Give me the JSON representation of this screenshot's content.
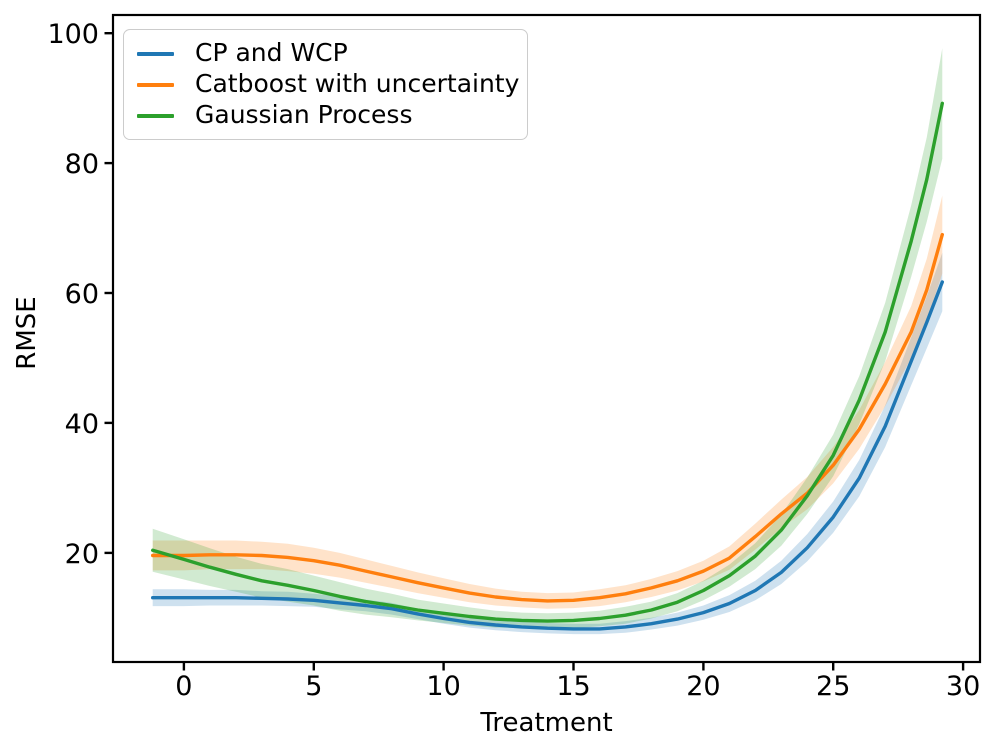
{
  "figure": {
    "background": "#ffffff",
    "axis_color": "#000000",
    "text_color": "#000000"
  },
  "legend": {
    "position": "upper left",
    "items": [
      {
        "label": "CP and WCP",
        "color": "#1f77b4"
      },
      {
        "label": "Catboost with uncertainty",
        "color": "#ff7f0e"
      },
      {
        "label": "Gaussian Process",
        "color": "#2ca02c"
      }
    ]
  },
  "chart_data": {
    "type": "line",
    "title": "",
    "xlabel": "Treatment",
    "ylabel": "RMSE",
    "xlim": [
      -2.73,
      30.65
    ],
    "ylim": [
      3.2,
      102.8
    ],
    "xticks": [
      0,
      5,
      10,
      15,
      20,
      25,
      30
    ],
    "yticks": [
      20,
      40,
      60,
      80,
      100
    ],
    "grid": false,
    "legend_position": "upper left",
    "band_alpha": 0.22,
    "x": [
      -1.2,
      0,
      1,
      2,
      3,
      4,
      5,
      6,
      7,
      8,
      9,
      10,
      11,
      12,
      13,
      14,
      15,
      16,
      17,
      18,
      19,
      20,
      21,
      22,
      23,
      24,
      25,
      26,
      27,
      28,
      28.6,
      29.2
    ],
    "series": [
      {
        "name": "CP and WCP",
        "color": "#1f77b4",
        "values": [
          13.1,
          13.1,
          13.1,
          13.1,
          13.0,
          12.9,
          12.7,
          12.3,
          11.9,
          11.4,
          10.6,
          9.9,
          9.3,
          8.9,
          8.6,
          8.4,
          8.3,
          8.3,
          8.6,
          9.1,
          9.8,
          10.8,
          12.2,
          14.2,
          17.0,
          20.8,
          25.5,
          31.5,
          39.5,
          49.5,
          55.5,
          61.7
        ],
        "band_halfwidth": [
          1.3,
          1.3,
          1.2,
          1.2,
          1.1,
          1.1,
          1.0,
          1.0,
          0.9,
          0.9,
          0.8,
          0.8,
          0.8,
          0.8,
          0.8,
          0.8,
          0.8,
          0.8,
          0.9,
          0.9,
          1.0,
          1.1,
          1.3,
          1.5,
          1.8,
          2.1,
          2.4,
          2.8,
          3.2,
          3.7,
          4.0,
          4.5
        ]
      },
      {
        "name": "Catboost with uncertainty",
        "color": "#ff7f0e",
        "values": [
          19.6,
          19.6,
          19.7,
          19.7,
          19.6,
          19.3,
          18.8,
          18.1,
          17.2,
          16.3,
          15.4,
          14.6,
          13.8,
          13.2,
          12.8,
          12.6,
          12.7,
          13.1,
          13.7,
          14.6,
          15.7,
          17.2,
          19.2,
          22.5,
          26.0,
          29.2,
          33.5,
          39.0,
          46.0,
          54.0,
          60.5,
          69.0
        ],
        "band_halfwidth": [
          2.3,
          2.3,
          2.2,
          2.2,
          2.1,
          2.1,
          2.0,
          1.9,
          1.8,
          1.7,
          1.6,
          1.5,
          1.4,
          1.3,
          1.2,
          1.2,
          1.2,
          1.3,
          1.3,
          1.4,
          1.5,
          1.6,
          1.8,
          2.0,
          2.2,
          2.5,
          2.8,
          3.0,
          3.4,
          4.0,
          4.8,
          6.0
        ]
      },
      {
        "name": "Gaussian Process",
        "color": "#2ca02c",
        "values": [
          20.4,
          19.0,
          17.8,
          16.7,
          15.7,
          15.0,
          14.2,
          13.3,
          12.5,
          11.9,
          11.2,
          10.7,
          10.2,
          9.8,
          9.6,
          9.5,
          9.6,
          9.9,
          10.4,
          11.2,
          12.4,
          14.2,
          16.5,
          19.5,
          23.5,
          28.8,
          35.0,
          43.5,
          54.0,
          68.0,
          77.5,
          89.2
        ],
        "band_halfwidth": [
          3.3,
          3.1,
          2.9,
          2.7,
          2.6,
          2.5,
          2.3,
          2.2,
          2.0,
          1.8,
          1.6,
          1.5,
          1.4,
          1.3,
          1.2,
          1.2,
          1.2,
          1.2,
          1.3,
          1.3,
          1.4,
          1.5,
          1.7,
          2.0,
          2.4,
          2.8,
          3.2,
          3.7,
          4.5,
          5.5,
          6.5,
          8.5
        ]
      }
    ]
  }
}
